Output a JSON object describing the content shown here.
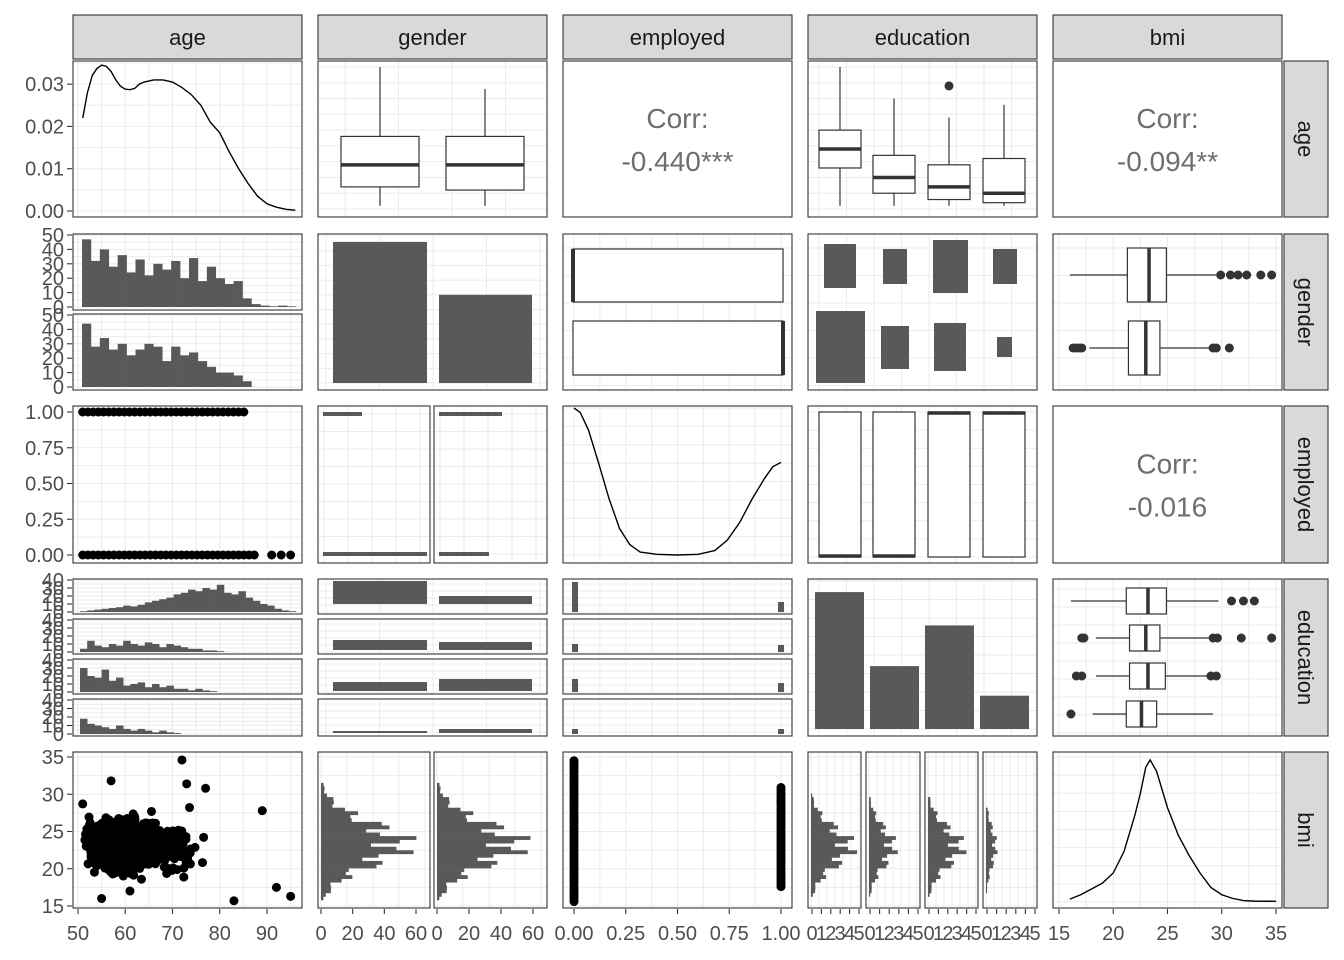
{
  "variables": [
    "age",
    "gender",
    "employed",
    "education",
    "bmi"
  ],
  "chart_data": {
    "type": "pairs",
    "corr_label": "Corr:",
    "correlations": [
      {
        "row": "age",
        "col": "employed",
        "value": "-0.440***"
      },
      {
        "row": "age",
        "col": "bmi",
        "value": "-0.094**"
      },
      {
        "row": "employed",
        "col": "bmi",
        "value": "-0.016"
      }
    ],
    "y_ticks": {
      "age": [
        "0.00",
        "0.01",
        "0.02",
        "0.03"
      ],
      "gender": [
        "0",
        "10",
        "20",
        "30",
        "40",
        "50"
      ],
      "employed": [
        "0.00",
        "0.25",
        "0.50",
        "0.75",
        "1.00"
      ],
      "education": [
        "0",
        "10",
        "20",
        "30",
        "40"
      ],
      "bmi": [
        "15",
        "20",
        "25",
        "30",
        "35"
      ]
    },
    "x_ticks": {
      "age": [
        "50",
        "60",
        "70",
        "80",
        "90"
      ],
      "gender": [
        "0",
        "20",
        "40",
        "60",
        "0",
        "20",
        "40",
        "60"
      ],
      "employed": [
        "0.00",
        "0.25",
        "0.50",
        "0.75",
        "1.00"
      ],
      "education": [
        "0",
        "1",
        "2",
        "3",
        "4",
        "5"
      ],
      "bmi": [
        "15",
        "20",
        "25",
        "30",
        "35"
      ]
    },
    "age_density": [
      [
        51,
        0.022
      ],
      [
        52,
        0.028
      ],
      [
        53,
        0.032
      ],
      [
        54,
        0.0337
      ],
      [
        55,
        0.0345
      ],
      [
        56,
        0.0342
      ],
      [
        57,
        0.033
      ],
      [
        58,
        0.031
      ],
      [
        59,
        0.0295
      ],
      [
        60,
        0.0288
      ],
      [
        61,
        0.0287
      ],
      [
        62,
        0.029
      ],
      [
        63,
        0.03
      ],
      [
        64,
        0.0305
      ],
      [
        66,
        0.031
      ],
      [
        68,
        0.031
      ],
      [
        70,
        0.0305
      ],
      [
        72,
        0.0292
      ],
      [
        74,
        0.0275
      ],
      [
        76,
        0.025
      ],
      [
        78,
        0.021
      ],
      [
        80,
        0.0185
      ],
      [
        82,
        0.014
      ],
      [
        84,
        0.01
      ],
      [
        86,
        0.0065
      ],
      [
        88,
        0.0035
      ],
      [
        90,
        0.0017
      ],
      [
        92,
        0.0009
      ],
      [
        94,
        0.0004
      ],
      [
        96,
        0.0002
      ]
    ],
    "bmi_density": [
      [
        16,
        0.02
      ],
      [
        17,
        0.05
      ],
      [
        18,
        0.09
      ],
      [
        19,
        0.13
      ],
      [
        20,
        0.2
      ],
      [
        21,
        0.35
      ],
      [
        22,
        0.6
      ],
      [
        22.5,
        0.75
      ],
      [
        23,
        0.93
      ],
      [
        23.4,
        0.98
      ],
      [
        24,
        0.9
      ],
      [
        25,
        0.65
      ],
      [
        26,
        0.46
      ],
      [
        27,
        0.32
      ],
      [
        28,
        0.2
      ],
      [
        29,
        0.1
      ],
      [
        30,
        0.05
      ],
      [
        31,
        0.025
      ],
      [
        32,
        0.01
      ],
      [
        33,
        0.006
      ],
      [
        35,
        0.005
      ]
    ],
    "employed_density": [
      [
        0,
        1.0
      ],
      [
        0.03,
        0.97
      ],
      [
        0.07,
        0.85
      ],
      [
        0.12,
        0.62
      ],
      [
        0.17,
        0.38
      ],
      [
        0.22,
        0.18
      ],
      [
        0.27,
        0.07
      ],
      [
        0.32,
        0.02
      ],
      [
        0.4,
        0.005
      ],
      [
        0.5,
        0.0
      ],
      [
        0.6,
        0.005
      ],
      [
        0.68,
        0.03
      ],
      [
        0.74,
        0.1
      ],
      [
        0.8,
        0.22
      ],
      [
        0.86,
        0.38
      ],
      [
        0.92,
        0.52
      ],
      [
        0.96,
        0.6
      ],
      [
        1.0,
        0.63
      ]
    ],
    "gender_counts": [
      48,
      30
    ],
    "gender_age_boxes": [
      {
        "min": 51,
        "q1": 57,
        "med": 64,
        "q3": 73,
        "max": 95
      },
      {
        "min": 51,
        "q1": 56,
        "med": 64,
        "q3": 73,
        "max": 88
      }
    ],
    "education_age_boxes": [
      {
        "min": 51,
        "q1": 63,
        "med": 69,
        "q3": 75,
        "max": 95
      },
      {
        "min": 51,
        "q1": 55,
        "med": 60,
        "q3": 67,
        "max": 85
      },
      {
        "min": 51,
        "q1": 53,
        "med": 57,
        "q3": 64,
        "max": 79,
        "outliers": [
          89
        ]
      },
      {
        "min": 51,
        "q1": 52,
        "med": 55,
        "q3": 66,
        "max": 83
      }
    ],
    "education_counts": [
      37,
      17,
      28,
      9
    ],
    "gender_bmi_boxes": [
      {
        "min": 16,
        "q1": 21.3,
        "med": 23.3,
        "q3": 24.9,
        "max": 29.5,
        "outliers": [
          29.9,
          30.8,
          31.5,
          32.3,
          33.6,
          34.6
        ]
      },
      {
        "min": 17.8,
        "q1": 21.4,
        "med": 23.0,
        "q3": 24.3,
        "max": 28.8,
        "outliers": [
          16.3,
          16.6,
          16.9,
          17.1,
          29.2,
          29.5,
          30.7
        ]
      }
    ],
    "education_bmi_boxes": [
      {
        "min": 16.1,
        "q1": 21.2,
        "med": 23.2,
        "q3": 24.9,
        "max": 29.7,
        "outliers": [
          30.9,
          32.0,
          33.0
        ]
      },
      {
        "min": 18.4,
        "q1": 21.5,
        "med": 23.0,
        "q3": 24.3,
        "max": 28.8,
        "outliers": [
          17.1,
          17.3,
          29.2,
          29.6,
          31.8,
          34.6
        ]
      },
      {
        "min": 18.4,
        "q1": 21.5,
        "med": 23.2,
        "q3": 24.8,
        "max": 28.6,
        "outliers": [
          16.6,
          17.1,
          29.0,
          29.5
        ]
      },
      {
        "min": 18.1,
        "q1": 21.2,
        "med": 22.6,
        "q3": 24.0,
        "max": 29.2,
        "outliers": [
          16.1
        ]
      }
    ],
    "employed_education_props": [
      0.98,
      0.98,
      0.02,
      0.02
    ],
    "gender_employed_props": [
      [
        0.02,
        0.98
      ],
      [
        0.01,
        0.99
      ]
    ],
    "gender_employed_counts": [
      [
        6,
        48
      ],
      [
        6,
        30
      ]
    ]
  }
}
